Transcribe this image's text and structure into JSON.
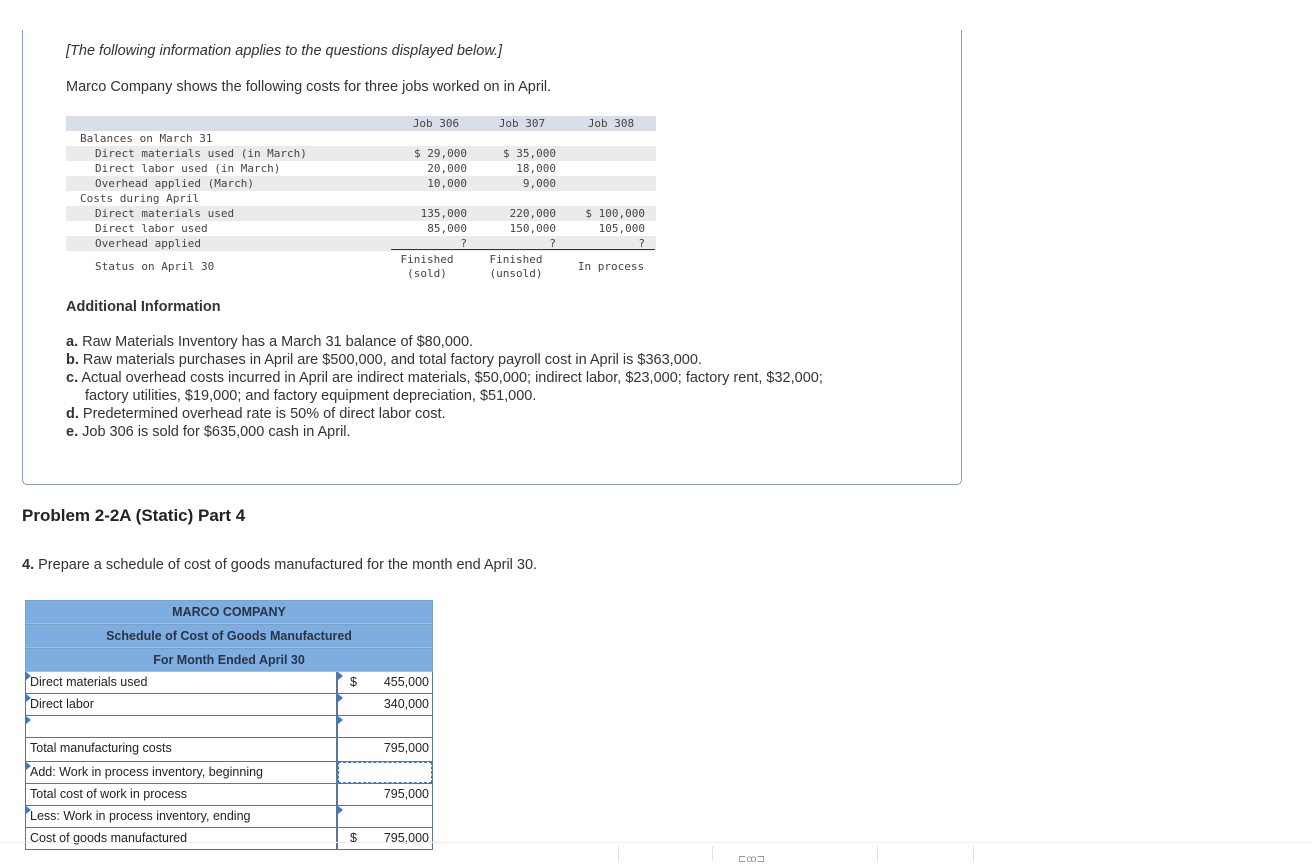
{
  "intro": {
    "note": "[The following information applies to the questions displayed below.]",
    "lead": "Marco Company shows the following costs for three jobs worked on in April."
  },
  "jobs_table": {
    "headers": [
      "Job 306",
      "Job 307",
      "Job 308"
    ],
    "rows": [
      {
        "label": "Balances on March 31",
        "values": [
          "",
          "",
          ""
        ],
        "indent": false
      },
      {
        "label": "Direct materials used (in March)",
        "values": [
          "$ 29,000",
          "$ 35,000",
          ""
        ],
        "indent": true
      },
      {
        "label": "Direct labor used (in March)",
        "values": [
          "20,000",
          "18,000",
          ""
        ],
        "indent": true
      },
      {
        "label": "Overhead applied (March)",
        "values": [
          "10,000",
          "9,000",
          ""
        ],
        "indent": true
      },
      {
        "label": "Costs during April",
        "values": [
          "",
          "",
          ""
        ],
        "indent": false
      },
      {
        "label": "Direct materials used",
        "values": [
          "135,000",
          "220,000",
          "$ 100,000"
        ],
        "indent": true
      },
      {
        "label": "Direct labor used",
        "values": [
          "85,000",
          "150,000",
          "105,000"
        ],
        "indent": true
      },
      {
        "label": "Overhead applied",
        "values": [
          "?",
          "?",
          "?"
        ],
        "indent": true
      }
    ],
    "status": {
      "label": "Status on April 30",
      "values": [
        [
          "Finished",
          "(sold)"
        ],
        [
          "Finished",
          "(unsold)"
        ],
        [
          "In process",
          ""
        ]
      ]
    }
  },
  "additional": {
    "title": "Additional Information",
    "items": [
      {
        "letter": "a.",
        "text": "Raw Materials Inventory has a March 31 balance of $80,000."
      },
      {
        "letter": "b.",
        "text": "Raw materials purchases in April are $500,000, and total factory payroll cost in April is $363,000."
      },
      {
        "letter": "c.",
        "text": "Actual overhead costs incurred in April are indirect materials, $50,000; indirect labor, $23,000; factory rent, $32,000;"
      },
      {
        "letter": "",
        "text": "factory utilities, $19,000; and factory equipment depreciation, $51,000."
      },
      {
        "letter": "d.",
        "text": "Predetermined overhead rate is 50% of direct labor cost."
      },
      {
        "letter": "e.",
        "text": "Job 306 is sold for $635,000 cash in April."
      }
    ]
  },
  "problem": {
    "title": "Problem 2-2A (Static) Part 4",
    "question_num": "4.",
    "question": "Prepare a schedule of cost of goods manufactured for the month end April 30."
  },
  "schedule": {
    "company": "MARCO COMPANY",
    "title": "Schedule of Cost of Goods Manufactured",
    "period": "For Month Ended April 30",
    "rows": [
      {
        "label": "Direct materials used",
        "dollar": "$",
        "value": "455,000"
      },
      {
        "label": "Direct labor",
        "dollar": "",
        "value": "340,000"
      },
      {
        "label": "",
        "dollar": "",
        "value": ""
      },
      {
        "label": "Total manufacturing costs",
        "dollar": "",
        "value": "795,000"
      },
      {
        "label": "Add: Work in process inventory, beginning",
        "dollar": "",
        "value": ""
      },
      {
        "label": "Total cost of work in process",
        "dollar": "",
        "value": "795,000"
      },
      {
        "label": "Less: Work in process inventory, ending",
        "dollar": "",
        "value": ""
      },
      {
        "label": "Cost of goods manufactured",
        "dollar": "$",
        "value": "795,000"
      }
    ]
  },
  "colors": {
    "header_blue": "#7eaee0",
    "border": "#5a7596",
    "accent": "#3a78c8"
  }
}
